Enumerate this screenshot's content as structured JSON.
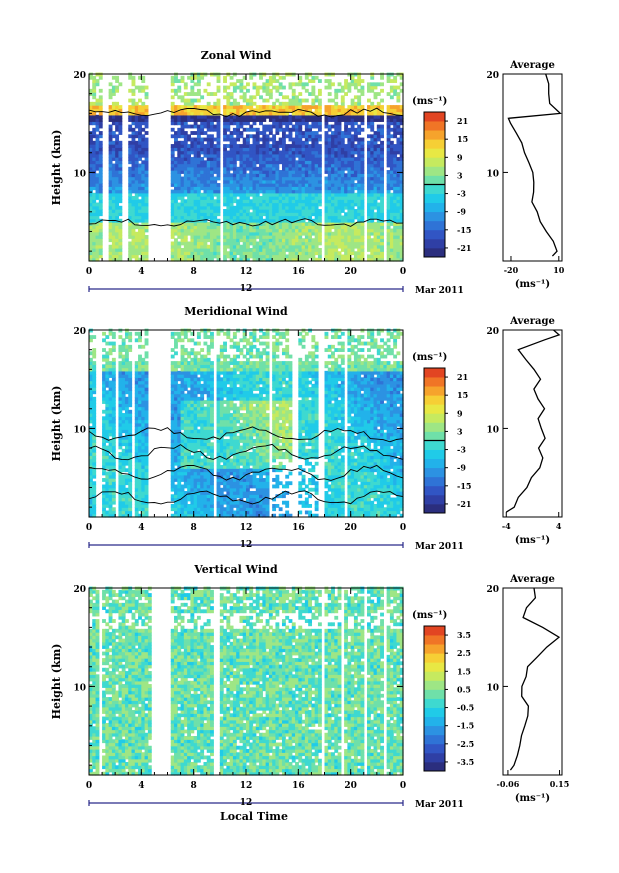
{
  "figure": {
    "xlabel": "Local Time",
    "date_label": "Mar 2011",
    "day_label": "12"
  },
  "chart_data": [
    {
      "type": "heatmap",
      "title": "Zonal Wind",
      "ylabel": "Height (km)",
      "xlim": [
        0,
        24
      ],
      "ylim": [
        1,
        20
      ],
      "x_ticks": [
        "0",
        "4",
        "8",
        "12",
        "16",
        "20",
        "0"
      ],
      "y_ticks": [
        "10",
        "20"
      ],
      "colorbar": {
        "unit": "(ms⁻¹)",
        "ticks": [
          "21",
          "15",
          "9",
          "3",
          "-3",
          "-9",
          "-15",
          "-21"
        ],
        "range": [
          -24,
          24
        ],
        "zero_contour": true
      },
      "gaps_hours": [
        [
          1.1,
          1.5
        ],
        [
          2.6,
          3.0
        ],
        [
          4.4,
          6.3
        ],
        [
          9.9,
          10.3
        ],
        [
          17.8,
          18.1
        ],
        [
          21.0,
          21.3
        ],
        [
          22.4,
          22.8
        ]
      ],
      "profile": {
        "title": "Average",
        "xlim": [
          -25,
          12
        ],
        "x_ticks": [
          "-20",
          "10"
        ],
        "xlabel": "(ms⁻¹)",
        "y_ticks": [
          "10",
          "20"
        ]
      },
      "average_profile": {
        "height_km": [
          1.5,
          2,
          3,
          4,
          5,
          6,
          7,
          8,
          9,
          10,
          11,
          12,
          13,
          14,
          15,
          15.5,
          16,
          17,
          18,
          19,
          20
        ],
        "value": [
          6,
          8,
          6,
          2,
          -2,
          -4,
          -6,
          -6,
          -6,
          -7,
          -8,
          -12,
          -14,
          -16,
          -20,
          -22,
          10,
          5,
          4,
          3,
          2
        ]
      }
    },
    {
      "type": "heatmap",
      "title": "Meridional Wind",
      "ylabel": "Height (km)",
      "xlim": [
        0,
        24
      ],
      "ylim": [
        1,
        20
      ],
      "x_ticks": [
        "0",
        "4",
        "8",
        "12",
        "16",
        "20",
        "0"
      ],
      "y_ticks": [
        "10",
        "20"
      ],
      "colorbar": {
        "unit": "(ms⁻¹)",
        "ticks": [
          "21",
          "15",
          "9",
          "3",
          "-3",
          "-9",
          "-15",
          "-21"
        ],
        "range": [
          -24,
          24
        ],
        "zero_contour": true
      },
      "gaps_hours": [
        [
          0.6,
          1.0
        ],
        [
          1.9,
          2.3
        ],
        [
          3.2,
          3.5
        ],
        [
          4.6,
          6.3
        ],
        [
          9.4,
          9.7
        ],
        [
          13.7,
          14.0
        ],
        [
          15.6,
          15.9
        ],
        [
          17.4,
          18.0
        ],
        [
          19.5,
          19.8
        ]
      ],
      "profile": {
        "title": "Average",
        "xlim": [
          -4.5,
          4.5
        ],
        "x_ticks": [
          "-4",
          "4"
        ],
        "xlabel": "(ms⁻¹)",
        "y_ticks": [
          "10",
          "20"
        ]
      },
      "average_profile": {
        "height_km": [
          1.5,
          2,
          3,
          4,
          5,
          6,
          7,
          8,
          9,
          10,
          11,
          12,
          13,
          14,
          15,
          16,
          17,
          18,
          19,
          19.5,
          20
        ],
        "value": [
          -4,
          -3,
          -2,
          -1,
          0,
          1,
          1.5,
          1,
          2,
          1.5,
          1,
          2,
          1,
          0,
          1,
          0,
          -1,
          -2,
          2,
          4,
          3
        ]
      }
    },
    {
      "type": "heatmap",
      "title": "Vertical Wind",
      "ylabel": "Height (km)",
      "xlim": [
        0,
        24
      ],
      "ylim": [
        1,
        20
      ],
      "x_ticks": [
        "0",
        "4",
        "8",
        "12",
        "16",
        "20",
        "0"
      ],
      "y_ticks": [
        "10",
        "20"
      ],
      "colorbar": {
        "unit": "(ms⁻¹)",
        "ticks": [
          "3.5",
          "2.5",
          "1.5",
          "0.5",
          "-0.5",
          "-1.5",
          "-2.5",
          "-3.5"
        ],
        "range": [
          -4,
          4
        ],
        "zero_contour": false
      },
      "gaps_hours": [
        [
          0.8,
          1.1
        ],
        [
          4.7,
          6.2
        ],
        [
          9.6,
          9.9
        ],
        [
          17.7,
          18.0
        ],
        [
          19.3,
          19.6
        ],
        [
          21.0,
          21.3
        ],
        [
          22.5,
          22.8
        ]
      ],
      "profile": {
        "title": "Average",
        "xlim": [
          -0.08,
          0.16
        ],
        "x_ticks": [
          "-0.06",
          "0.15"
        ],
        "xlabel": "(ms⁻¹)",
        "y_ticks": [
          "10",
          "20"
        ]
      },
      "average_profile": {
        "height_km": [
          1.5,
          2,
          3,
          4,
          5,
          6,
          7,
          8,
          9,
          10,
          11,
          12,
          13,
          14,
          15,
          16,
          17,
          18,
          19,
          20
        ],
        "value": [
          -0.05,
          -0.04,
          -0.02,
          -0.01,
          0.0,
          0.01,
          0.02,
          0.02,
          0.0,
          0.0,
          0.01,
          0.02,
          0.06,
          0.1,
          0.15,
          0.08,
          0.0,
          0.02,
          0.05,
          0.04
        ]
      }
    }
  ]
}
